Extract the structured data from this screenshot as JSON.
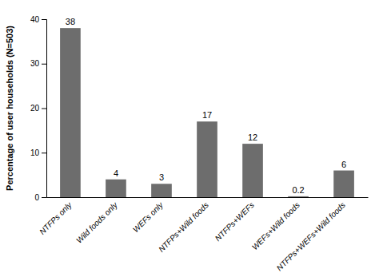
{
  "chart_data": {
    "type": "bar",
    "categories": [
      "NTFPs only",
      "Wild foods only",
      "WEFs only",
      "NTFPs+Wild foods",
      "NTFPs+WEFs",
      "WEFs+Wild foods",
      "NTFPs+WEFs+Wild foods"
    ],
    "values": [
      38,
      4,
      3,
      17,
      12,
      0.2,
      6
    ],
    "color": "#6d6d6d",
    "ylabel": "Percentage of user households (N=503)",
    "ylim": [
      0,
      40
    ],
    "yticks": [
      0,
      10,
      20,
      30,
      40
    ],
    "grid": false,
    "data_labels": true
  }
}
